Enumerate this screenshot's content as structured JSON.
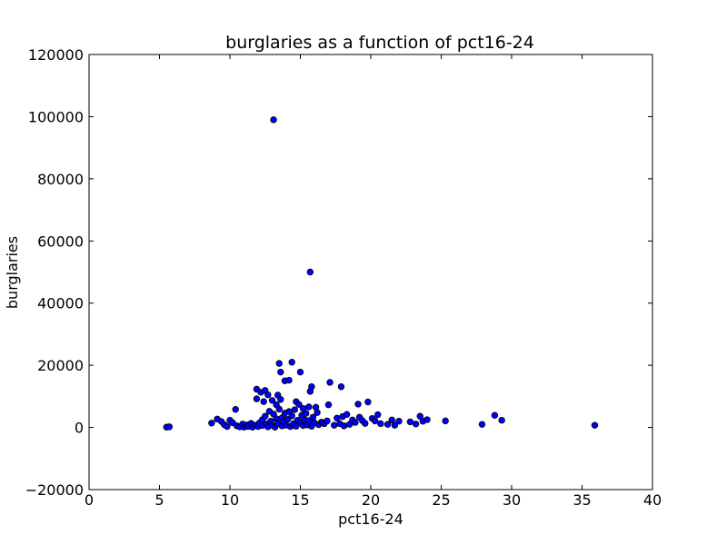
{
  "chart_data": {
    "type": "scatter",
    "title": "burglaries as a function of pct16-24",
    "xlabel": "pct16-24",
    "ylabel": "burglaries",
    "xlim": [
      0,
      40
    ],
    "ylim": [
      -20000,
      120000
    ],
    "x_ticks": [
      0,
      5,
      10,
      15,
      20,
      25,
      30,
      35,
      40
    ],
    "y_ticks": [
      -20000,
      0,
      20000,
      40000,
      60000,
      80000,
      100000,
      120000
    ],
    "x_tick_labels": [
      "0",
      "5",
      "10",
      "15",
      "20",
      "25",
      "30",
      "35",
      "40"
    ],
    "y_tick_labels": [
      "−20000",
      "0",
      "20000",
      "40000",
      "60000",
      "80000",
      "100000",
      "120000"
    ],
    "grid": false,
    "legend": "none",
    "marker_color": "#0000ff",
    "marker_edge_color": "#000000",
    "points": [
      {
        "x": 5.5,
        "y": 100
      },
      {
        "x": 5.7,
        "y": 200
      },
      {
        "x": 8.7,
        "y": 1400
      },
      {
        "x": 9.1,
        "y": 2700
      },
      {
        "x": 9.4,
        "y": 1900
      },
      {
        "x": 9.6,
        "y": 900
      },
      {
        "x": 9.8,
        "y": 300
      },
      {
        "x": 10.0,
        "y": 2300
      },
      {
        "x": 10.2,
        "y": 1500
      },
      {
        "x": 10.4,
        "y": 5800
      },
      {
        "x": 10.5,
        "y": 500
      },
      {
        "x": 10.7,
        "y": 200
      },
      {
        "x": 10.9,
        "y": 1100
      },
      {
        "x": 11.0,
        "y": 100
      },
      {
        "x": 11.2,
        "y": 800
      },
      {
        "x": 11.3,
        "y": 300
      },
      {
        "x": 11.5,
        "y": 1300
      },
      {
        "x": 11.6,
        "y": 100
      },
      {
        "x": 11.8,
        "y": 700
      },
      {
        "x": 11.9,
        "y": 12300
      },
      {
        "x": 11.9,
        "y": 9200
      },
      {
        "x": 12.0,
        "y": 300
      },
      {
        "x": 12.1,
        "y": 1500
      },
      {
        "x": 12.2,
        "y": 11300
      },
      {
        "x": 12.3,
        "y": 2500
      },
      {
        "x": 12.3,
        "y": 600
      },
      {
        "x": 12.4,
        "y": 8300
      },
      {
        "x": 12.5,
        "y": 11900
      },
      {
        "x": 12.5,
        "y": 3600
      },
      {
        "x": 12.6,
        "y": 1100
      },
      {
        "x": 12.7,
        "y": 10500
      },
      {
        "x": 12.7,
        "y": 200
      },
      {
        "x": 12.8,
        "y": 5200
      },
      {
        "x": 12.9,
        "y": 2000
      },
      {
        "x": 13.0,
        "y": 8700
      },
      {
        "x": 13.0,
        "y": 700
      },
      {
        "x": 13.1,
        "y": 99000
      },
      {
        "x": 13.1,
        "y": 4300
      },
      {
        "x": 13.2,
        "y": 100
      },
      {
        "x": 13.3,
        "y": 7300
      },
      {
        "x": 13.3,
        "y": 2800
      },
      {
        "x": 13.4,
        "y": 10400
      },
      {
        "x": 13.4,
        "y": 1300
      },
      {
        "x": 13.5,
        "y": 20600
      },
      {
        "x": 13.5,
        "y": 5900
      },
      {
        "x": 13.6,
        "y": 17800
      },
      {
        "x": 13.6,
        "y": 9000
      },
      {
        "x": 13.7,
        "y": 3100
      },
      {
        "x": 13.7,
        "y": 500
      },
      {
        "x": 13.8,
        "y": 1900
      },
      {
        "x": 13.9,
        "y": 15000
      },
      {
        "x": 13.9,
        "y": 4600
      },
      {
        "x": 14.0,
        "y": 700
      },
      {
        "x": 14.1,
        "y": 2600
      },
      {
        "x": 14.2,
        "y": 15200
      },
      {
        "x": 14.2,
        "y": 5100
      },
      {
        "x": 14.3,
        "y": 300
      },
      {
        "x": 14.4,
        "y": 21000
      },
      {
        "x": 14.4,
        "y": 3700
      },
      {
        "x": 14.5,
        "y": 1200
      },
      {
        "x": 14.6,
        "y": 5700
      },
      {
        "x": 14.7,
        "y": 8300
      },
      {
        "x": 14.7,
        "y": 400
      },
      {
        "x": 14.8,
        "y": 2300
      },
      {
        "x": 14.9,
        "y": 7400
      },
      {
        "x": 15.0,
        "y": 17800
      },
      {
        "x": 15.0,
        "y": 1600
      },
      {
        "x": 15.1,
        "y": 3900
      },
      {
        "x": 15.2,
        "y": 6100
      },
      {
        "x": 15.2,
        "y": 600
      },
      {
        "x": 15.3,
        "y": 2400
      },
      {
        "x": 15.4,
        "y": 4500
      },
      {
        "x": 15.5,
        "y": 800
      },
      {
        "x": 15.6,
        "y": 6600
      },
      {
        "x": 15.6,
        "y": 2200
      },
      {
        "x": 15.7,
        "y": 50000
      },
      {
        "x": 15.7,
        "y": 11600
      },
      {
        "x": 15.8,
        "y": 13100
      },
      {
        "x": 15.8,
        "y": 400
      },
      {
        "x": 15.9,
        "y": 3300
      },
      {
        "x": 16.0,
        "y": 1500
      },
      {
        "x": 16.1,
        "y": 6500
      },
      {
        "x": 16.2,
        "y": 4800
      },
      {
        "x": 16.3,
        "y": 900
      },
      {
        "x": 16.5,
        "y": 1700
      },
      {
        "x": 16.7,
        "y": 1200
      },
      {
        "x": 16.9,
        "y": 2100
      },
      {
        "x": 17.0,
        "y": 7300
      },
      {
        "x": 17.1,
        "y": 14500
      },
      {
        "x": 17.4,
        "y": 700
      },
      {
        "x": 17.6,
        "y": 3000
      },
      {
        "x": 17.8,
        "y": 1200
      },
      {
        "x": 17.9,
        "y": 13100
      },
      {
        "x": 18.0,
        "y": 3500
      },
      {
        "x": 18.1,
        "y": 500
      },
      {
        "x": 18.3,
        "y": 4200
      },
      {
        "x": 18.5,
        "y": 1000
      },
      {
        "x": 18.7,
        "y": 2400
      },
      {
        "x": 18.9,
        "y": 1600
      },
      {
        "x": 19.1,
        "y": 7500
      },
      {
        "x": 19.2,
        "y": 3300
      },
      {
        "x": 19.4,
        "y": 2200
      },
      {
        "x": 19.6,
        "y": 1300
      },
      {
        "x": 19.8,
        "y": 8200
      },
      {
        "x": 20.1,
        "y": 2900
      },
      {
        "x": 20.3,
        "y": 2100
      },
      {
        "x": 20.5,
        "y": 4100
      },
      {
        "x": 20.7,
        "y": 1200
      },
      {
        "x": 21.2,
        "y": 1000
      },
      {
        "x": 21.5,
        "y": 2400
      },
      {
        "x": 21.7,
        "y": 700
      },
      {
        "x": 22.0,
        "y": 2000
      },
      {
        "x": 22.8,
        "y": 1800
      },
      {
        "x": 23.2,
        "y": 1100
      },
      {
        "x": 23.5,
        "y": 3600
      },
      {
        "x": 23.7,
        "y": 2000
      },
      {
        "x": 24.0,
        "y": 2500
      },
      {
        "x": 25.3,
        "y": 2100
      },
      {
        "x": 27.9,
        "y": 1000
      },
      {
        "x": 28.8,
        "y": 3900
      },
      {
        "x": 29.3,
        "y": 2300
      },
      {
        "x": 35.9,
        "y": 700
      }
    ]
  }
}
